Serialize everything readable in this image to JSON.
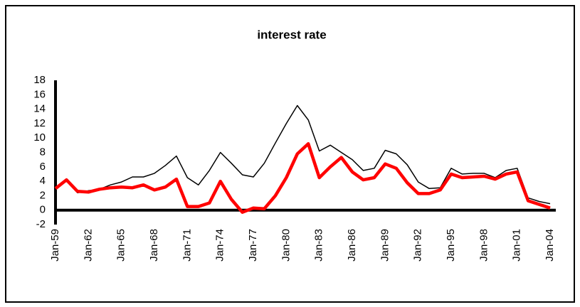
{
  "chart_data": {
    "type": "line",
    "title": "interest rate",
    "categories": [
      "Jan-59",
      null,
      null,
      "Jan-62",
      null,
      null,
      "Jan-65",
      null,
      null,
      "Jan-68",
      null,
      null,
      "Jan-71",
      null,
      null,
      "Jan-74",
      null,
      null,
      "Jan-77",
      null,
      null,
      "Jan-80",
      null,
      null,
      "Jan-83",
      null,
      null,
      "Jan-86",
      null,
      null,
      "Jan-89",
      null,
      null,
      "Jan-92",
      null,
      null,
      "Jan-95",
      null,
      null,
      "Jan-98",
      null,
      null,
      "Jan-01",
      null,
      null,
      "Jan-04"
    ],
    "series": [
      {
        "color": "#000000",
        "values": [
          3.0,
          4.3,
          2.4,
          2.7,
          2.9,
          3.5,
          3.9,
          4.6,
          4.6,
          5.1,
          6.2,
          7.5,
          4.5,
          3.5,
          5.5,
          8.0,
          6.5,
          4.9,
          4.6,
          6.5,
          9.3,
          12.0,
          14.5,
          12.5,
          8.2,
          9.0,
          8.0,
          7.0,
          5.5,
          5.8,
          8.3,
          7.8,
          6.3,
          3.9,
          3.0,
          3.1,
          5.8,
          5.0,
          5.1,
          5.1,
          4.5,
          5.5,
          5.8,
          1.7,
          1.2,
          0.9
        ]
      },
      {
        "color": "#ff0000",
        "values": [
          3.0,
          4.2,
          2.6,
          2.5,
          2.9,
          3.1,
          3.2,
          3.1,
          3.5,
          2.8,
          3.2,
          4.3,
          0.5,
          0.5,
          1.0,
          4.0,
          1.5,
          -0.3,
          0.3,
          0.2,
          2.0,
          4.5,
          7.8,
          9.2,
          4.5,
          6.0,
          7.3,
          5.3,
          4.2,
          4.5,
          6.4,
          5.8,
          3.8,
          2.3,
          2.3,
          2.8,
          5.0,
          4.5,
          4.6,
          4.7,
          4.3,
          5.0,
          5.3,
          1.3,
          0.8,
          0.3
        ]
      }
    ],
    "ylim": [
      -2,
      18
    ],
    "yticks": [
      -2,
      0,
      2,
      4,
      6,
      8,
      10,
      12,
      14,
      16,
      18
    ],
    "grid": false
  }
}
